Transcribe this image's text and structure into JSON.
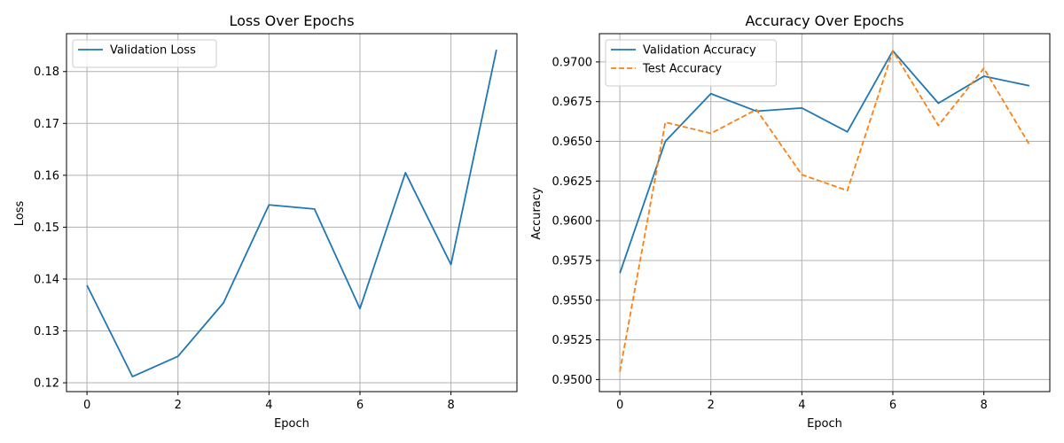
{
  "chart_data": [
    {
      "type": "line",
      "title": "Loss Over Epochs",
      "xlabel": "Epoch",
      "ylabel": "Loss",
      "x": [
        0,
        1,
        2,
        3,
        4,
        5,
        6,
        7,
        8,
        9
      ],
      "xlim": [
        -0.45,
        9.45
      ],
      "ylim": [
        0.1183,
        0.1873
      ],
      "xticks": [
        0,
        2,
        4,
        6,
        8
      ],
      "yticks": [
        0.12,
        0.13,
        0.14,
        0.15,
        0.16,
        0.17,
        0.18
      ],
      "ytick_labels": [
        "0.12",
        "0.13",
        "0.14",
        "0.15",
        "0.16",
        "0.17",
        "0.18"
      ],
      "grid": true,
      "legend_position": "top-left",
      "series": [
        {
          "name": "Validation Loss",
          "values": [
            0.1388,
            0.1212,
            0.1251,
            0.1354,
            0.1543,
            0.1535,
            0.1343,
            0.1605,
            0.1428,
            0.1842
          ],
          "color": "#1f77b4",
          "dash": "solid"
        }
      ]
    },
    {
      "type": "line",
      "title": "Accuracy Over Epochs",
      "xlabel": "Epoch",
      "ylabel": "Accuracy",
      "x": [
        0,
        1,
        2,
        3,
        4,
        5,
        6,
        7,
        8,
        9
      ],
      "xlim": [
        -0.45,
        9.45
      ],
      "ylim": [
        0.94924,
        0.97178
      ],
      "xticks": [
        0,
        2,
        4,
        6,
        8
      ],
      "yticks": [
        0.95,
        0.9525,
        0.955,
        0.9575,
        0.96,
        0.9625,
        0.965,
        0.9675,
        0.97
      ],
      "ytick_labels": [
        "0.9500",
        "0.9525",
        "0.9550",
        "0.9575",
        "0.9600",
        "0.9625",
        "0.9650",
        "0.9675",
        "0.9700"
      ],
      "grid": true,
      "legend_position": "top-left",
      "series": [
        {
          "name": "Validation Accuracy",
          "values": [
            0.9567,
            0.965,
            0.968,
            0.9669,
            0.9671,
            0.9656,
            0.9707,
            0.9674,
            0.9691,
            0.9685
          ],
          "color": "#1f77b4",
          "dash": "solid"
        },
        {
          "name": "Test Accuracy",
          "values": [
            0.9505,
            0.9662,
            0.9655,
            0.967,
            0.9629,
            0.9619,
            0.9707,
            0.966,
            0.9696,
            0.9648
          ],
          "color": "#ff7f0e",
          "dash": "dashed"
        }
      ]
    }
  ]
}
